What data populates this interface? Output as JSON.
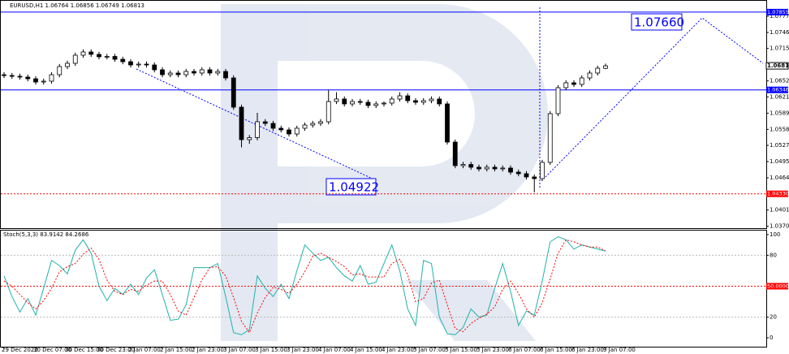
{
  "chart_data": [
    {
      "type": "candlestick",
      "title": "EURUSD,H1 1.06764 1.06856 1.06749 1.06813",
      "ylim": [
        1.03664,
        1.0809
      ],
      "yticks": [
        1.07775,
        {
          "value": 1.0746,
          "label": "1.07460"
        },
        {
          "value": 1.0715,
          "label": "1.07150"
        },
        {
          "value": 1.0652,
          "label": "1.06520"
        },
        {
          "value": 1.0621,
          "label": "1.06210"
        },
        1.05895,
        {
          "value": 1.0558,
          "label": "1.05580"
        },
        {
          "value": 1.0527,
          "label": "1.05270"
        },
        1.04955,
        {
          "value": 1.0464,
          "label": "1.04640"
        },
        1.04015,
        {
          "value": 1.037,
          "label": "1.03700"
        }
      ],
      "levels": [
        {
          "value": 1.07855,
          "color": "#0000ff"
        },
        {
          "value": 1.06346,
          "color": "#0000ff"
        },
        {
          "value": 1.0433,
          "label": "1.04330",
          "color": "#ff0000"
        }
      ],
      "last": 1.06813,
      "annotations": [
        "1.07660",
        "1.04922"
      ],
      "candles": [
        [
          1.0664,
          1.0669,
          1.06575,
          1.06625
        ],
        [
          1.06625,
          1.06675,
          1.0656,
          1.0661
        ],
        [
          1.0661,
          1.0666,
          1.06544,
          1.06594
        ],
        [
          1.06594,
          1.06644,
          1.06512,
          1.06562
        ],
        [
          1.06562,
          1.06612,
          1.06449,
          1.06499
        ],
        [
          1.06499,
          1.06565,
          1.06449,
          1.06515
        ],
        [
          1.06515,
          1.06691,
          1.06465,
          1.06641
        ],
        [
          1.06641,
          1.06849,
          1.06591,
          1.06799
        ],
        [
          1.06799,
          1.06912,
          1.06749,
          1.06862
        ],
        [
          1.06862,
          1.07069,
          1.06812,
          1.07019
        ],
        [
          1.07019,
          1.07132,
          1.06969,
          1.07082
        ],
        [
          1.07082,
          1.07132,
          1.06985,
          1.07035
        ],
        [
          1.07035,
          1.07085,
          1.06938,
          1.06988
        ],
        [
          1.06988,
          1.07045,
          1.06938,
          1.06995
        ],
        [
          1.06995,
          1.07045,
          1.0689,
          1.0694
        ],
        [
          1.0694,
          1.0699,
          1.06843,
          1.06893
        ],
        [
          1.06893,
          1.06943,
          1.0678,
          1.0683
        ],
        [
          1.0683,
          1.06896,
          1.0678,
          1.06846
        ],
        [
          1.06846,
          1.06896,
          1.0678,
          1.0683
        ],
        [
          1.0683,
          1.0688,
          1.06686,
          1.06736
        ],
        [
          1.06736,
          1.06786,
          1.06591,
          1.06641
        ],
        [
          1.06641,
          1.06723,
          1.06591,
          1.06673
        ],
        [
          1.06673,
          1.06723,
          1.06591,
          1.06641
        ],
        [
          1.06641,
          1.06754,
          1.06591,
          1.06704
        ],
        [
          1.06704,
          1.06754,
          1.06623,
          1.06673
        ],
        [
          1.06673,
          1.06786,
          1.06623,
          1.06736
        ],
        [
          1.06736,
          1.06786,
          1.06623,
          1.06673
        ],
        [
          1.06673,
          1.06754,
          1.06623,
          1.06704
        ],
        [
          1.06704,
          1.06754,
          1.06528,
          1.06578
        ],
        [
          1.06578,
          1.06628,
          1.05961,
          1.06011
        ],
        [
          1.06011,
          1.06061,
          1.05231,
          1.05381
        ],
        [
          1.05381,
          1.0547,
          1.053,
          1.0542
        ],
        [
          1.0542,
          1.059,
          1.0537,
          1.05728
        ],
        [
          1.05728,
          1.05778,
          1.05646,
          1.05696
        ],
        [
          1.05696,
          1.05746,
          1.05552,
          1.05602
        ],
        [
          1.05602,
          1.05652,
          1.0552,
          1.0557
        ],
        [
          1.0557,
          1.0562,
          1.05441,
          1.05491
        ],
        [
          1.05491,
          1.05652,
          1.05441,
          1.05602
        ],
        [
          1.05602,
          1.05714,
          1.05552,
          1.05664
        ],
        [
          1.05664,
          1.05746,
          1.05614,
          1.05696
        ],
        [
          1.05696,
          1.05778,
          1.05646,
          1.05728
        ],
        [
          1.05728,
          1.06346,
          1.05678,
          1.06121
        ],
        [
          1.06121,
          1.063,
          1.06071,
          1.06169
        ],
        [
          1.06169,
          1.06219,
          1.06024,
          1.06074
        ],
        [
          1.06074,
          1.06171,
          1.06024,
          1.06121
        ],
        [
          1.06121,
          1.06171,
          1.06056,
          1.06106
        ],
        [
          1.06106,
          1.06156,
          1.05993,
          1.06043
        ],
        [
          1.06043,
          1.06124,
          1.05993,
          1.06074
        ],
        [
          1.06074,
          1.06124,
          1.06024,
          1.0609
        ],
        [
          1.0609,
          1.06219,
          1.0604,
          1.06169
        ],
        [
          1.06169,
          1.063,
          1.06119,
          1.06231
        ],
        [
          1.06231,
          1.06281,
          1.06087,
          1.06137
        ],
        [
          1.06137,
          1.06187,
          1.06056,
          1.06106
        ],
        [
          1.06106,
          1.06187,
          1.06056,
          1.06137
        ],
        [
          1.06137,
          1.06219,
          1.06087,
          1.06169
        ],
        [
          1.06169,
          1.06219,
          1.06024,
          1.06074
        ],
        [
          1.06074,
          1.06124,
          1.05284,
          1.05334
        ],
        [
          1.05334,
          1.05384,
          1.04827,
          1.04877
        ],
        [
          1.04877,
          1.0495,
          1.04827,
          1.049
        ],
        [
          1.049,
          1.0495,
          1.04796,
          1.04846
        ],
        [
          1.04846,
          1.04896,
          1.04764,
          1.04814
        ],
        [
          1.04814,
          1.04896,
          1.04764,
          1.04846
        ],
        [
          1.04846,
          1.04896,
          1.04764,
          1.04814
        ],
        [
          1.04814,
          1.0488,
          1.04764,
          1.0483
        ],
        [
          1.0483,
          1.0488,
          1.04701,
          1.04751
        ],
        [
          1.04751,
          1.04801,
          1.0467,
          1.0472
        ],
        [
          1.0472,
          1.0477,
          1.04607,
          1.04657
        ],
        [
          1.04657,
          1.04707,
          1.0436,
          1.04625
        ],
        [
          1.04625,
          1.0499,
          1.04575,
          1.0494
        ],
        [
          1.0494,
          1.05935,
          1.0489,
          1.05885
        ],
        [
          1.05885,
          1.06439,
          1.05835,
          1.06389
        ],
        [
          1.06389,
          1.06534,
          1.06339,
          1.06484
        ],
        [
          1.06484,
          1.06534,
          1.06402,
          1.06452
        ],
        [
          1.06452,
          1.06628,
          1.06402,
          1.06578
        ],
        [
          1.06578,
          1.06723,
          1.06528,
          1.06673
        ],
        [
          1.06673,
          1.06817,
          1.06623,
          1.06767
        ],
        [
          1.06764,
          1.06856,
          1.06749,
          1.06813
        ]
      ]
    },
    {
      "type": "line",
      "title": "Stoch(5,3,3) 83.9142 84.2686",
      "ylim": [
        -8.6,
        104.7
      ],
      "yticks": [
        100,
        80,
        20,
        0
      ],
      "levels": [
        {
          "value": 50,
          "label": "50.0000",
          "color": "#ff0000"
        }
      ],
      "categories": [
        "29 Dec 2022",
        null,
        null,
        null,
        "30 Dec 07:00",
        null,
        null,
        null,
        "30 Dec 15:00",
        null,
        null,
        null,
        "30 Dec 23:00",
        null,
        null,
        null,
        "2 Jan 07:00",
        null,
        null,
        null,
        "2 Jan 15:00",
        null,
        null,
        null,
        "2 Jan 23:00",
        null,
        null,
        null,
        "3 Jan 07:00",
        null,
        null,
        null,
        "3 Jan 15:00",
        null,
        null,
        null,
        "3 Jan 23:00",
        null,
        null,
        null,
        "4 Jan 07:00",
        null,
        null,
        null,
        "4 Jan 15:00",
        null,
        null,
        null,
        "4 Jan 23:00",
        null,
        null,
        null,
        "5 Jan 07:00",
        null,
        null,
        null,
        "5 Jan 15:00",
        null,
        null,
        null,
        "5 Jan 23:00",
        null,
        null,
        null,
        "6 Jan 07:00",
        null,
        null,
        null,
        "6 Jan 15:00",
        null,
        null,
        null,
        "6 Jan 23:00",
        null,
        null,
        null,
        "9 Jan 07:00"
      ],
      "series": [
        {
          "color": "#20b2aa",
          "dash": false,
          "values": [
            60,
            40,
            25,
            38,
            22,
            48,
            75,
            70,
            62,
            85,
            95,
            82,
            50,
            36,
            48,
            42,
            52,
            42,
            58,
            66,
            42,
            17,
            18,
            32,
            68,
            68,
            68,
            72,
            40,
            5,
            3,
            8,
            60,
            48,
            40,
            52,
            38,
            65,
            90,
            82,
            75,
            78,
            68,
            60,
            55,
            70,
            52,
            54,
            72,
            90,
            65,
            28,
            12,
            75,
            72,
            20,
            4,
            3,
            10,
            28,
            20,
            22,
            48,
            72,
            45,
            12,
            26,
            22,
            55,
            93,
            98,
            95,
            86,
            90,
            88,
            86,
            83.9142
          ]
        },
        {
          "color": "#ff0000",
          "dash": true,
          "values": [
            55,
            50,
            42,
            34,
            28,
            36,
            48,
            64,
            69,
            72,
            81,
            87,
            76,
            56,
            45,
            42,
            47,
            45,
            51,
            55,
            55,
            42,
            26,
            22,
            39,
            56,
            68,
            69,
            60,
            39,
            16,
            5,
            24,
            39,
            49,
            47,
            43,
            52,
            64,
            79,
            82,
            78,
            74,
            69,
            61,
            62,
            59,
            59,
            59,
            72,
            76,
            61,
            35,
            38,
            53,
            56,
            32,
            9,
            6,
            14,
            19,
            23,
            30,
            47,
            55,
            43,
            28,
            20,
            34,
            57,
            82,
            95,
            93,
            90,
            88,
            88,
            84.2686
          ]
        }
      ]
    }
  ]
}
